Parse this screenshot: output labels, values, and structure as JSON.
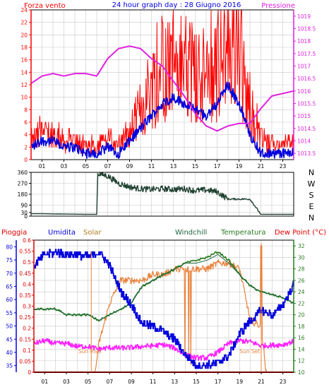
{
  "colors": {
    "wind": "#ff0000",
    "wind_avg": "#0000dd",
    "pressure": "#e020e0",
    "direction": "#1e4030",
    "humidity": "#0000dd",
    "solar": "#e8823c",
    "windchill": "#1e6640",
    "temperature": "#2a7a20",
    "dewpoint": "#ff20ff",
    "rain": "#dd0000",
    "frame": "#000000",
    "grid": "#c8c8c8"
  },
  "header": {
    "left": "Forza vento",
    "title": "24 hour graph day : 28 Giugno 2016",
    "right": "Pressione"
  },
  "direction_labels": [
    "N",
    "W",
    "S",
    "E",
    "N"
  ],
  "sun_labels": [
    "Sun Rise",
    "Sun Set"
  ],
  "legend": {
    "rain": "Pioggia",
    "humidity": "Umidita",
    "solar": "Solar",
    "windchill": "Windchill",
    "temperature": "Temperatura",
    "dewpoint": "Dew Point (°C)"
  },
  "chart_data": [
    {
      "type": "line",
      "title": "24 hour graph day : 28 Giugno 2016",
      "xlabel": "",
      "ylabel": "Forza vento",
      "y2label": "Pressione",
      "xlim": [
        0,
        24
      ],
      "ylim": [
        0,
        24
      ],
      "y2lim": [
        1013.25,
        1019.25
      ],
      "x_ticks": [
        "01",
        "03",
        "05",
        "07",
        "09",
        "11",
        "13",
        "15",
        "17",
        "19",
        "21",
        "23"
      ],
      "y_ticks": [
        0,
        2,
        4,
        6,
        8,
        10,
        12,
        14,
        16,
        18,
        20,
        22,
        24
      ],
      "y2_ticks": [
        "1013.5",
        "1014",
        "1014.5",
        "1015",
        "1015.5",
        "1016",
        "1016.5",
        "1017",
        "1017.5",
        "1018",
        "1018.5",
        "1019"
      ],
      "grid": true,
      "x": [
        0,
        1,
        2,
        3,
        4,
        5,
        6,
        7,
        8,
        9,
        10,
        11,
        12,
        13,
        14,
        15,
        16,
        17,
        18,
        19,
        20,
        21,
        22,
        23,
        24
      ],
      "series": [
        {
          "name": "Forza vento",
          "axis": "left",
          "values": [
            3,
            4,
            4,
            3,
            3,
            2,
            2,
            3,
            2,
            4,
            8,
            12,
            14,
            16,
            14,
            13,
            12,
            14,
            18,
            16,
            8,
            3,
            2,
            2,
            3
          ]
        },
        {
          "name": "",
          "axis": "left",
          "values": [
            2,
            3,
            3,
            2,
            2,
            1,
            1,
            2,
            1,
            3,
            5,
            7,
            9,
            10,
            9,
            8,
            7,
            9,
            12,
            9,
            4,
            1,
            1,
            1,
            1
          ]
        },
        {
          "name": "Pressione",
          "axis": "right",
          "values": [
            1016.3,
            1016.6,
            1016.7,
            1016.6,
            1016.7,
            1016.7,
            1016.6,
            1017.3,
            1017.7,
            1017.8,
            1017.7,
            1017.3,
            1017.0,
            1016.4,
            1015.8,
            1015.1,
            1014.6,
            1014.4,
            1014.6,
            1014.7,
            1014.7,
            1015.3,
            1015.8,
            1015.9,
            1016.0
          ]
        }
      ]
    },
    {
      "type": "line",
      "title": "",
      "xlabel": "",
      "ylabel": "",
      "xlim": [
        0,
        24
      ],
      "ylim": [
        0,
        360
      ],
      "y_ticks": [
        0,
        30,
        90,
        180,
        270,
        360
      ],
      "grid": true,
      "x": [
        0,
        1,
        2,
        3,
        4,
        5,
        6,
        6.1,
        7,
        8,
        9,
        10,
        11,
        12,
        13,
        14,
        15,
        16,
        17,
        18,
        19,
        20,
        21,
        22,
        23,
        24
      ],
      "series": [
        {
          "name": "",
          "values": [
            20,
            20,
            18,
            17,
            16,
            15,
            15,
            350,
            330,
            270,
            240,
            225,
            220,
            225,
            220,
            225,
            210,
            215,
            200,
            140,
            140,
            140,
            15,
            15,
            15,
            15
          ]
        }
      ]
    },
    {
      "type": "line",
      "title": "",
      "xlabel": "",
      "ylabel": "Umidita",
      "y2label": "Dew Point (°C)",
      "xlim": [
        0,
        24
      ],
      "humidity_lim": [
        32.5,
        82.5
      ],
      "rain_lim": [
        0,
        0.6
      ],
      "temp_lim": [
        10,
        33
      ],
      "humidity_ticks": [
        35,
        40,
        45,
        50,
        55,
        60,
        65,
        70,
        75,
        80
      ],
      "rain_ticks": [
        "0",
        "0.05",
        "0.1",
        "0.15",
        "0.2",
        "0.25",
        "0.3",
        "0.35",
        "0.4",
        "0.45",
        "0.5",
        "0.55",
        "0.6"
      ],
      "temp_ticks": [
        10,
        12,
        14,
        16,
        18,
        20,
        22,
        24,
        26,
        28,
        30,
        32
      ],
      "grid": true,
      "x": [
        0,
        1,
        2,
        3,
        4,
        5,
        6,
        7,
        8,
        9,
        10,
        11,
        12,
        13,
        14,
        15,
        16,
        17,
        18,
        19,
        20,
        21,
        22,
        23,
        24
      ],
      "series": [
        {
          "name": "Umidita",
          "axis": "humidity",
          "values": [
            73,
            77,
            78,
            77,
            77,
            76,
            78,
            73,
            63,
            58,
            51,
            50,
            48,
            45,
            39,
            35,
            35,
            36,
            39,
            47,
            52,
            56,
            54,
            58,
            66
          ]
        },
        {
          "name": "Solar",
          "axis": "temp",
          "values": [
            0,
            0,
            0,
            0,
            0,
            0,
            15,
            22,
            26,
            26,
            26,
            27,
            27,
            28,
            28,
            28,
            28,
            29,
            29,
            28,
            19,
            18,
            0,
            0,
            0
          ]
        },
        {
          "name": "Windchill",
          "axis": "temp",
          "values": [
            21,
            21,
            21,
            20,
            20,
            20,
            19,
            20,
            21,
            22,
            25,
            26,
            27,
            28,
            29,
            29,
            29.5,
            30.5,
            29,
            27,
            25,
            24,
            23.5,
            23,
            22
          ]
        },
        {
          "name": "Temperatura",
          "axis": "temp",
          "values": [
            21,
            21,
            21,
            20,
            20,
            20,
            19,
            20,
            21,
            22,
            25,
            26,
            27,
            28,
            29,
            29.5,
            30,
            31,
            29.5,
            27,
            25,
            24,
            23.5,
            23,
            22
          ]
        },
        {
          "name": "Dew Point (°C)",
          "axis": "temp",
          "values": [
            15,
            15.5,
            15,
            15,
            14.5,
            14.5,
            14,
            14.3,
            14.2,
            14.3,
            14.5,
            14.6,
            14.8,
            14.2,
            13,
            12.5,
            12.5,
            13.5,
            15,
            15.5,
            15.3,
            14.6,
            14.7,
            14.8,
            15.4
          ]
        },
        {
          "name": "Pioggia",
          "axis": "rain",
          "values": [
            0,
            0,
            0,
            0,
            0,
            0,
            0,
            0,
            0,
            0,
            0,
            0,
            0,
            0,
            0,
            0,
            0,
            0,
            0,
            0,
            0,
            0,
            0,
            0,
            0
          ]
        }
      ],
      "annotations": [
        "Sun Rise",
        "Sun Set"
      ]
    }
  ]
}
